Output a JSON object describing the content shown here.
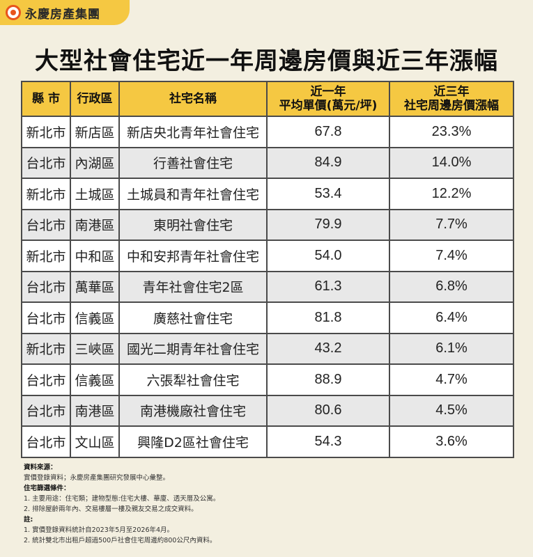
{
  "logo": {
    "text": "永慶房產集團"
  },
  "title": "大型社會住宅近一年周邊房價與近三年漲幅",
  "table": {
    "headers": {
      "city": "縣 市",
      "district": "行政區",
      "name": "社宅名稱",
      "price_line1": "近一年",
      "price_line2": "平均單價(萬元/坪)",
      "growth_line1": "近三年",
      "growth_line2": "社宅周邊房價漲幅"
    },
    "rows": [
      {
        "city": "新北市",
        "district": "新店區",
        "name": "新店央北青年社會住宅",
        "price": "67.8",
        "growth": "23.3%"
      },
      {
        "city": "台北市",
        "district": "內湖區",
        "name": "行善社會住宅",
        "price": "84.9",
        "growth": "14.0%"
      },
      {
        "city": "新北市",
        "district": "土城區",
        "name": "土城員和青年社會住宅",
        "price": "53.4",
        "growth": "12.2%"
      },
      {
        "city": "台北市",
        "district": "南港區",
        "name": "東明社會住宅",
        "price": "79.9",
        "growth": "7.7%"
      },
      {
        "city": "新北市",
        "district": "中和區",
        "name": "中和安邦青年社會住宅",
        "price": "54.0",
        "growth": "7.4%"
      },
      {
        "city": "台北市",
        "district": "萬華區",
        "name": "青年社會住宅2區",
        "price": "61.3",
        "growth": "6.8%"
      },
      {
        "city": "台北市",
        "district": "信義區",
        "name": "廣慈社會住宅",
        "price": "81.8",
        "growth": "6.4%"
      },
      {
        "city": "新北市",
        "district": "三峽區",
        "name": "國光二期青年社會住宅",
        "price": "43.2",
        "growth": "6.1%"
      },
      {
        "city": "台北市",
        "district": "信義區",
        "name": "六張犁社會住宅",
        "price": "88.9",
        "growth": "4.7%"
      },
      {
        "city": "台北市",
        "district": "南港區",
        "name": "南港機廠社會住宅",
        "price": "80.6",
        "growth": "4.5%"
      },
      {
        "city": "台北市",
        "district": "文山區",
        "name": "興隆D2區社會住宅",
        "price": "54.3",
        "growth": "3.6%"
      }
    ]
  },
  "notes": {
    "source_heading": "資料來源：",
    "source_text": "實價登錄資料；永慶房產集團研究發展中心彙整。",
    "criteria_heading": "住宅篩選條件：",
    "criteria_1": "1. 主要用途：住宅類；建物型態:住宅大樓、華廈、透天厝及公寓。",
    "criteria_2": "2. 排除屋齡兩年內、交易樓層一樓及親友交易之成交資料。",
    "note_heading": "註:",
    "note_1": "1. 實價登錄資料統計自2023年5月至2026年4月。",
    "note_2": "2. 統計雙北市出租戶超過500戶社會住宅周邊約800公尺內資料。"
  }
}
